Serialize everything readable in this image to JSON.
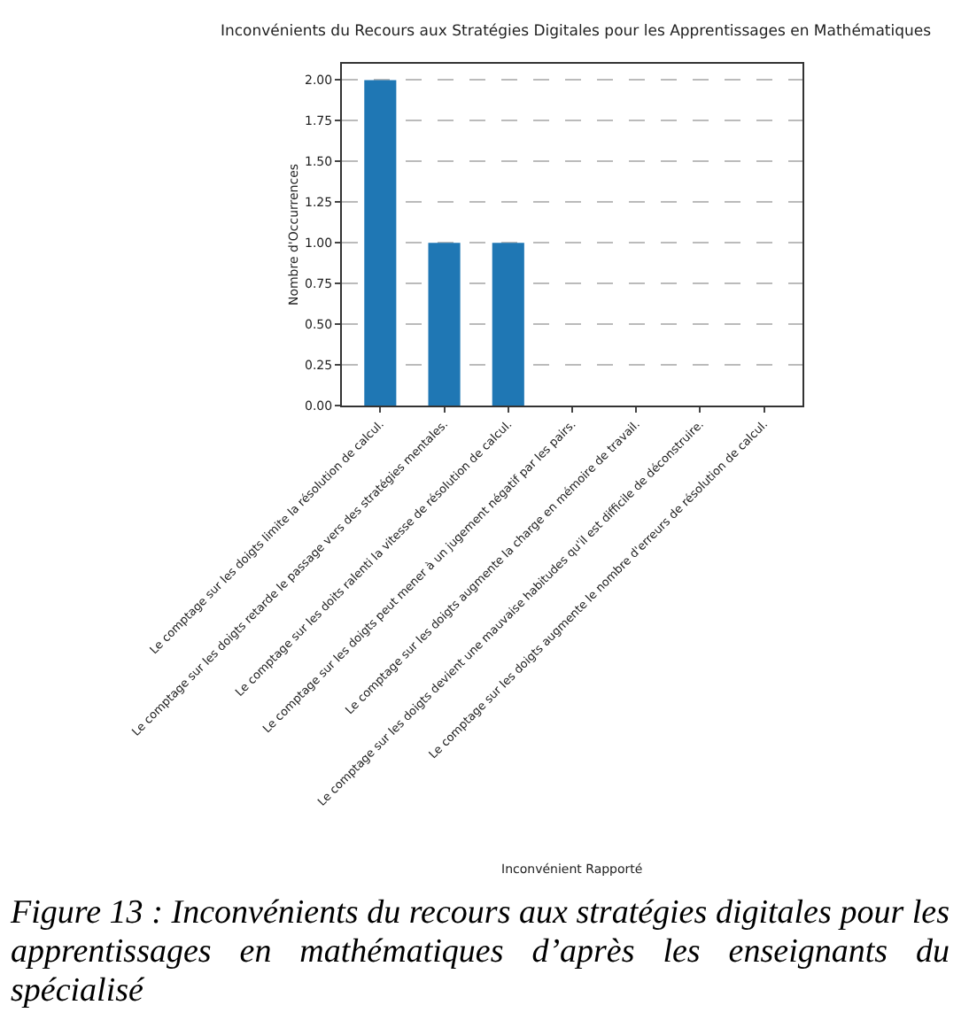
{
  "chart_data": {
    "type": "bar",
    "title": "Inconvénients du Recours aux Stratégies Digitales pour les Apprentissages en Mathématiques",
    "xlabel": "Inconvénient Rapporté",
    "ylabel": "Nombre d'Occurrences",
    "categories": [
      "Le comptage sur les doigts limite la résolution de calcul.",
      "Le comptage sur les doigts retarde le passage vers des stratégies mentales.",
      "Le comptage sur les doits ralenti la vitesse de résolution de calcul.",
      "Le comptage sur les doigts peut mener à un jugement négatif par les pairs.",
      "Le comptage sur les doigts augmente la charge en mémoire de travail.",
      "Le comptage sur les doigts devient une mauvaise habitudes qu'il est difficile de déconstruire.",
      "Le comptage sur les doigts augmente le nombre d'erreurs de résolution de calcul."
    ],
    "values": [
      2,
      1,
      1,
      0,
      0,
      0,
      0
    ],
    "color": "#1f77b4",
    "ylim": [
      0,
      2.1
    ],
    "yticks": [
      {
        "value": 0,
        "label": "0.00"
      },
      {
        "value": 0.25,
        "label": "0.25"
      },
      {
        "value": 0.5,
        "label": "0.50"
      },
      {
        "value": 0.75,
        "label": "0.75"
      },
      {
        "value": 1,
        "label": "1.00"
      },
      {
        "value": 1.25,
        "label": "1.25"
      },
      {
        "value": 1.5,
        "label": "1.50"
      },
      {
        "value": 1.75,
        "label": "1.75"
      },
      {
        "value": 2,
        "label": "2.00"
      }
    ],
    "grid": "y",
    "line_style": "dashed",
    "annotations": [
      "Figure 13 : Inconvénients du recours aux stratégies digitales pour les apprentissages en mathématiques d’après les enseignants du spécialisé"
    ]
  }
}
